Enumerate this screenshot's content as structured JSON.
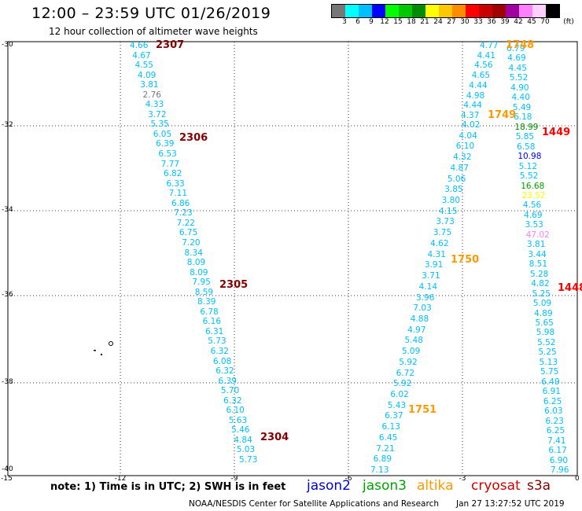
{
  "header": {
    "title": "12:00 – 23:59 UTC 01/26/2019",
    "subtitle": "12 hour collection of altimeter wave heights"
  },
  "legend": {
    "unit": "(ft)",
    "swatches": [
      {
        "color": "#777777",
        "label": "3"
      },
      {
        "color": "#00ffff",
        "label": "6"
      },
      {
        "color": "#00bfff",
        "label": "9"
      },
      {
        "color": "#0000ff",
        "label": "12"
      },
      {
        "color": "#00ff00",
        "label": "15"
      },
      {
        "color": "#00c800",
        "label": "18"
      },
      {
        "color": "#008c00",
        "label": "21"
      },
      {
        "color": "#ffff00",
        "label": "24"
      },
      {
        "color": "#ffc800",
        "label": "27"
      },
      {
        "color": "#ff8c00",
        "label": "30"
      },
      {
        "color": "#ff0000",
        "label": "33"
      },
      {
        "color": "#c80000",
        "label": "36"
      },
      {
        "color": "#a00000",
        "label": "39"
      },
      {
        "color": "#a000a0",
        "label": "42"
      },
      {
        "color": "#ff80ff",
        "label": "45"
      },
      {
        "color": "#ffd0ff",
        "label": "70"
      },
      {
        "color": "#000000",
        "label": ""
      }
    ]
  },
  "axes": {
    "y_labels": [
      "-30",
      "-32",
      "-34",
      "-36",
      "-38",
      "-40"
    ],
    "x_labels": [
      "-15",
      "-12",
      "-9",
      "-6",
      "-3",
      "0"
    ]
  },
  "passes": [
    {
      "id": "2307",
      "color": "#800000"
    },
    {
      "id": "2306",
      "color": "#800000"
    },
    {
      "id": "2305",
      "color": "#800000"
    },
    {
      "id": "2304",
      "color": "#800000"
    },
    {
      "id": "1748",
      "color": "#ff9900"
    },
    {
      "id": "1749",
      "color": "#ff9900"
    },
    {
      "id": "1449",
      "color": "#ff0000"
    },
    {
      "id": "1750",
      "color": "#ff9900"
    },
    {
      "id": "1448",
      "color": "#ff0000"
    },
    {
      "id": "1751",
      "color": "#ff9900"
    }
  ],
  "tracks": {
    "left": [
      "4.66",
      "4.67",
      "4.55",
      "4.09",
      "3.81",
      "2.76",
      "4.33",
      "3.72",
      "5.35",
      "6.05",
      "6.39",
      "6.53",
      "7.77",
      "6.82",
      "6.33",
      "7.11",
      "6.86",
      "7.23",
      "7.22",
      "6.75",
      "7.20",
      "8.34",
      "8.09",
      "8.09",
      "7.95",
      "8.59",
      "8.39",
      "6.78",
      "6.16",
      "6.31",
      "5.73",
      "6.32",
      "6.08",
      "6.32",
      "6.39",
      "5.70",
      "6.32",
      "6.10",
      "5.63",
      "5.46",
      "4.84",
      "5.03",
      "5.73"
    ],
    "left_colors": {
      "2.76": "#777777"
    },
    "middle": [
      "4.02",
      "4.04",
      "6.10",
      "4.32",
      "4.87",
      "5.06",
      "3.85",
      "3.80",
      "4.15",
      "3.73",
      "3.75",
      "4.62",
      "4.31",
      "3.91",
      "3.71",
      "4.14",
      "3.96",
      "7.03",
      "4.88",
      "4.97",
      "5.48",
      "5.09",
      "5.92",
      "6.72",
      "5.92",
      "6.02",
      "5.43",
      "6.37",
      "6.13",
      "6.45",
      "7.21",
      "6.89",
      "7.13"
    ],
    "upper_middle": [
      "4.77",
      "4.41",
      "4.56",
      "4.65",
      "4.44",
      "4.98",
      "4.44",
      "4.37"
    ],
    "right": [
      {
        "v": "6.79",
        "c": "#00bfff"
      },
      {
        "v": "4.69",
        "c": "#00bfff"
      },
      {
        "v": "4.45",
        "c": "#00bfff"
      },
      {
        "v": "5.52",
        "c": "#00bfff"
      },
      {
        "v": "4.90",
        "c": "#00bfff"
      },
      {
        "v": "4.40",
        "c": "#00bfff"
      },
      {
        "v": "5.49",
        "c": "#00bfff"
      },
      {
        "v": "6.18",
        "c": "#00bfff"
      },
      {
        "v": "18.99",
        "c": "#008c00"
      },
      {
        "v": "5.85",
        "c": "#00bfff"
      },
      {
        "v": "6.58",
        "c": "#00bfff"
      },
      {
        "v": "10.98",
        "c": "#0000ff"
      },
      {
        "v": "5.12",
        "c": "#00bfff"
      },
      {
        "v": "5.52",
        "c": "#00bfff"
      },
      {
        "v": "16.68",
        "c": "#00a000"
      },
      {
        "v": "23.52",
        "c": "#ffff00"
      },
      {
        "v": "4.56",
        "c": "#00bfff"
      },
      {
        "v": "4.69",
        "c": "#00bfff"
      },
      {
        "v": "3.53",
        "c": "#00bfff"
      },
      {
        "v": "47.02",
        "c": "#ff80ff"
      },
      {
        "v": "3.81",
        "c": "#00bfff"
      },
      {
        "v": "3.44",
        "c": "#00bfff"
      },
      {
        "v": "8.51",
        "c": "#00bfff"
      },
      {
        "v": "5.28",
        "c": "#00bfff"
      },
      {
        "v": "4.82",
        "c": "#00bfff"
      },
      {
        "v": "5.25",
        "c": "#00bfff"
      },
      {
        "v": "5.09",
        "c": "#00bfff"
      },
      {
        "v": "4.89",
        "c": "#00bfff"
      },
      {
        "v": "5.65",
        "c": "#00bfff"
      },
      {
        "v": "5.98",
        "c": "#00bfff"
      },
      {
        "v": "5.52",
        "c": "#00bfff"
      },
      {
        "v": "5.25",
        "c": "#00bfff"
      },
      {
        "v": "5.13",
        "c": "#00bfff"
      },
      {
        "v": "5.75",
        "c": "#00bfff"
      },
      {
        "v": "6.49",
        "c": "#00bfff"
      },
      {
        "v": "6.91",
        "c": "#00bfff"
      },
      {
        "v": "6.25",
        "c": "#00bfff"
      },
      {
        "v": "6.03",
        "c": "#00bfff"
      },
      {
        "v": "6.23",
        "c": "#00bfff"
      },
      {
        "v": "6.25",
        "c": "#00bfff"
      },
      {
        "v": "7.41",
        "c": "#00bfff"
      },
      {
        "v": "6.17",
        "c": "#00bfff"
      },
      {
        "v": "6.90",
        "c": "#00bfff"
      },
      {
        "v": "7.96",
        "c": "#00bfff"
      }
    ]
  },
  "note": "note: 1) Time is in UTC; 2) SWH is in feet",
  "satellites": [
    {
      "name": "jason2",
      "color": "#0000cc"
    },
    {
      "name": "jason3",
      "color": "#00a000"
    },
    {
      "name": "altika",
      "color": "#ff9900"
    },
    {
      "name": "cryosat",
      "color": "#cc0000"
    },
    {
      "name": "s3a",
      "color": "#800000"
    }
  ],
  "footer": {
    "credit": "NOAA/NESDIS Center for Satellite Applications and Research",
    "timestamp": "Jan 27 13:27:52 UTC 2019"
  }
}
